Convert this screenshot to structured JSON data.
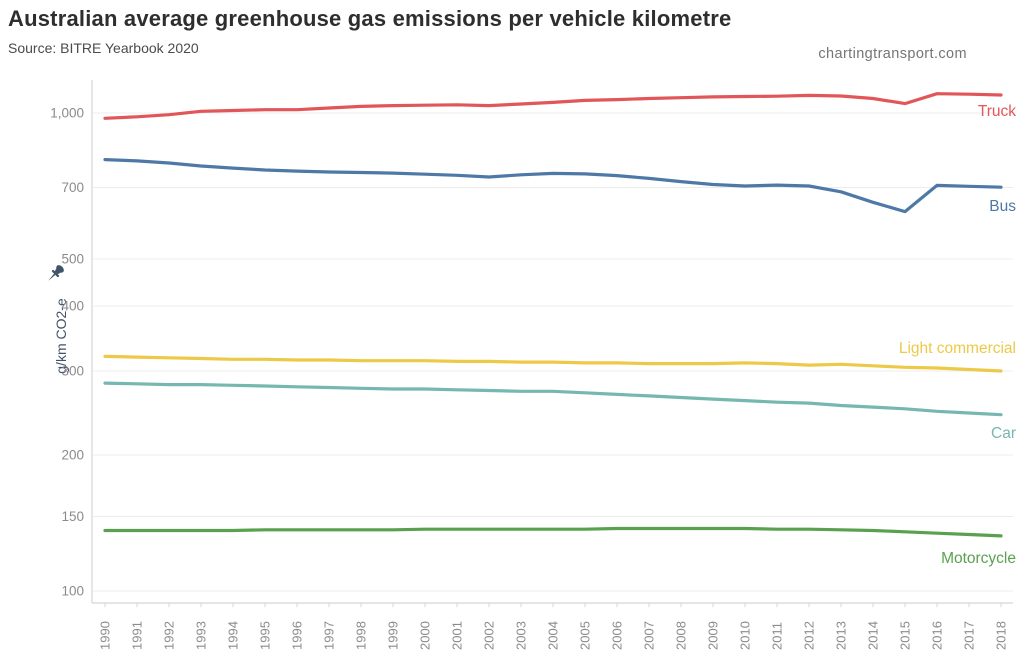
{
  "header": {
    "title": "Australian average greenhouse gas emissions per vehicle kilometre",
    "subtitle": "Source: BITRE Yearbook 2020",
    "watermark": "chartingtransport.com"
  },
  "axes": {
    "y_title": "g/km CO2-e",
    "y_ticks": [
      {
        "label": "1,000",
        "value": 1000
      },
      {
        "label": "700",
        "value": 700
      },
      {
        "label": "500",
        "value": 500
      },
      {
        "label": "400",
        "value": 400
      },
      {
        "label": "300",
        "value": 300
      },
      {
        "label": "200",
        "value": 200
      },
      {
        "label": "150",
        "value": 150
      },
      {
        "label": "100",
        "value": 100
      }
    ]
  },
  "chart_data": {
    "type": "line",
    "title": "Australian average greenhouse gas emissions per vehicle kilometre",
    "subtitle": "Source: BITRE Yearbook 2020",
    "xlabel": "",
    "ylabel": "g/km CO2-e",
    "yscale": "log",
    "ylim": [
      100,
      1150
    ],
    "grid": "horizontal-only",
    "legend": "direct-labels-right",
    "x": [
      1990,
      1991,
      1992,
      1993,
      1994,
      1995,
      1996,
      1997,
      1998,
      1999,
      2000,
      2001,
      2002,
      2003,
      2004,
      2005,
      2006,
      2007,
      2008,
      2009,
      2010,
      2011,
      2012,
      2013,
      2014,
      2015,
      2016,
      2017,
      2018
    ],
    "series": [
      {
        "name": "Truck",
        "color": "#e15759",
        "values": [
          975,
          982,
          992,
          1008,
          1012,
          1016,
          1016,
          1024,
          1032,
          1036,
          1038,
          1040,
          1036,
          1044,
          1052,
          1062,
          1066,
          1072,
          1076,
          1080,
          1082,
          1084,
          1088,
          1085,
          1072,
          1046,
          1097,
          1094,
          1090
        ]
      },
      {
        "name": "Bus",
        "color": "#4e79a7",
        "values": [
          800,
          795,
          787,
          776,
          768,
          761,
          757,
          754,
          752,
          750,
          746,
          742,
          736,
          744,
          749,
          747,
          741,
          731,
          720,
          710,
          705,
          708,
          705,
          686,
          653,
          625,
          707,
          704,
          701
        ]
      },
      {
        "name": "Light commercial",
        "color": "#edc948",
        "values": [
          320,
          319,
          318,
          317,
          316,
          316,
          315,
          315,
          314,
          314,
          314,
          313,
          313,
          312,
          312,
          311,
          311,
          310,
          310,
          310,
          311,
          310,
          308,
          309,
          307,
          305,
          304,
          302,
          300
        ]
      },
      {
        "name": "Car",
        "color": "#76b7b2",
        "values": [
          283,
          282,
          281,
          281,
          280,
          279,
          278,
          277,
          276,
          275,
          275,
          274,
          273,
          272,
          272,
          270,
          268,
          266,
          264,
          262,
          260,
          258,
          257,
          254,
          252,
          250,
          247,
          245,
          243
        ]
      },
      {
        "name": "Motorcycle",
        "color": "#59a14f",
        "values": [
          139,
          139,
          139,
          139,
          139,
          139.5,
          139.5,
          139.5,
          139.5,
          139.5,
          140,
          140,
          140,
          140,
          140,
          140,
          140.5,
          140.5,
          140.5,
          140.5,
          140.5,
          140,
          140,
          139.5,
          139,
          138,
          137,
          136,
          135
        ]
      }
    ]
  },
  "colors": {
    "grid": "#ececec",
    "axis_line": "#d5d5d5",
    "tick_text": "#8b8b8b",
    "axis_title_text": "#41526b"
  }
}
